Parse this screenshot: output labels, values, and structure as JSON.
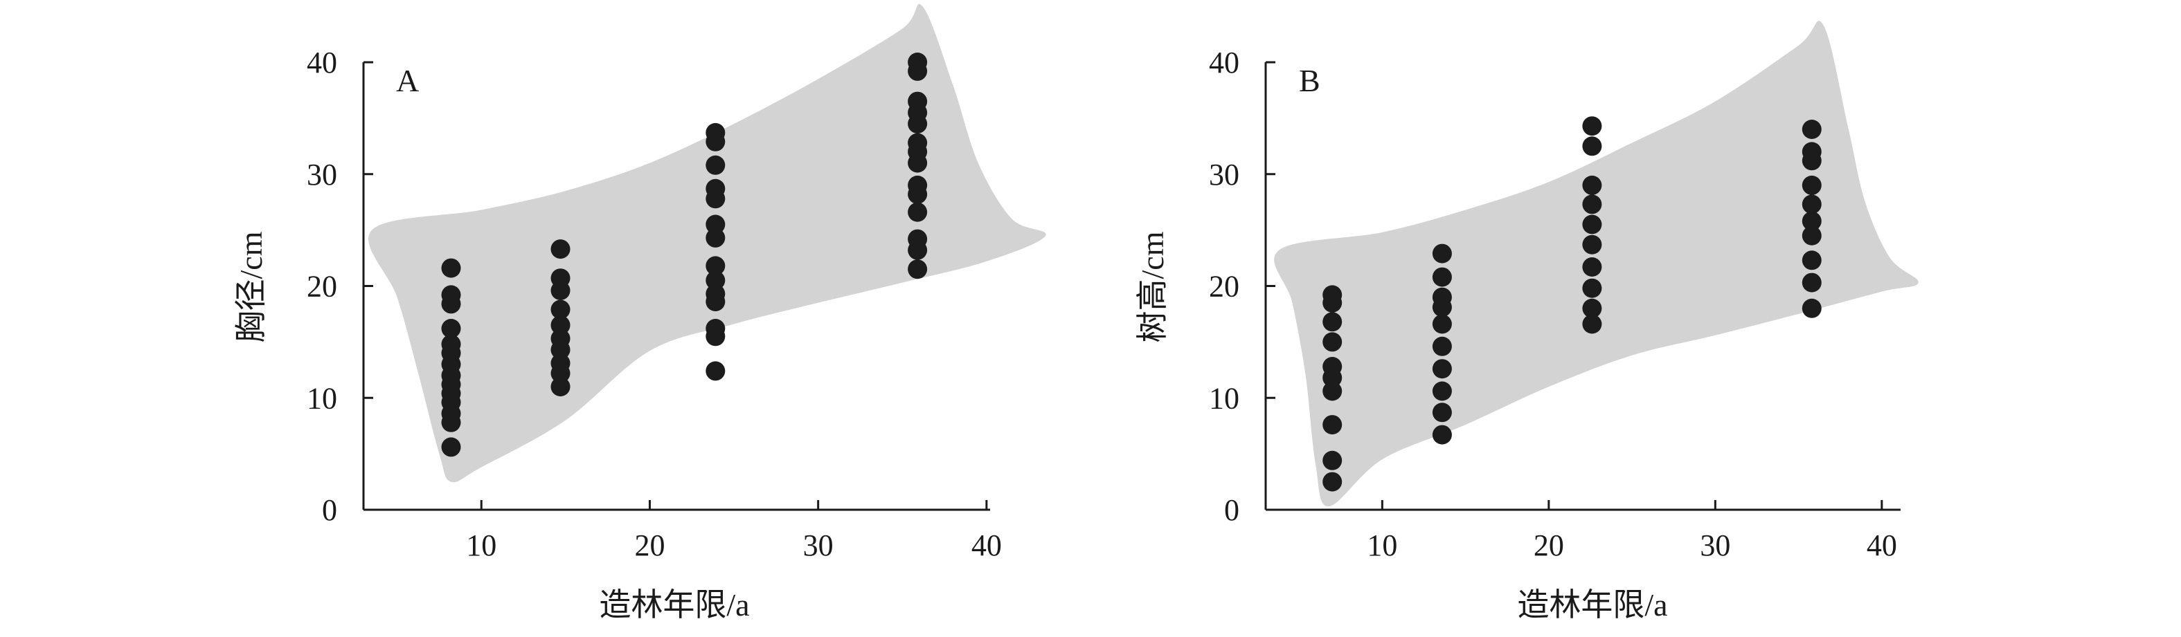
{
  "colors": {
    "band": "#d3d3d3",
    "point": "#1c1c1c",
    "axis": "#1a1a1a"
  },
  "chart_data": [
    {
      "type": "scatter",
      "panel_label": "A",
      "xlabel": "造林年限/a",
      "ylabel": "胸径/cm",
      "xlim": [
        3,
        40
      ],
      "ylim": [
        0,
        40
      ],
      "xticks": [
        10,
        20,
        30,
        40
      ],
      "yticks": [
        0,
        10,
        20,
        30,
        40
      ],
      "prediction_band": {
        "upper": [
          [
            3.5,
            25
          ],
          [
            10,
            26.8
          ],
          [
            15,
            28.5
          ],
          [
            20,
            31
          ],
          [
            25,
            34.5
          ],
          [
            30,
            38.5
          ],
          [
            35,
            43
          ],
          [
            36.2,
            45
          ]
        ],
        "lower": [
          [
            43.5,
            24.5
          ],
          [
            40,
            22.2
          ],
          [
            35,
            20.3
          ],
          [
            30,
            18.5
          ],
          [
            25,
            16.6
          ],
          [
            20,
            14.2
          ],
          [
            15,
            8
          ],
          [
            10,
            3.8
          ],
          [
            8.2,
            2.5
          ]
        ],
        "connectors": {
          "left": [
            [
              7.5,
              5
            ],
            [
              6.2,
              12.5
            ],
            [
              5,
              19
            ]
          ],
          "right": [
            [
              38,
              38
            ],
            [
              39.5,
              31
            ],
            [
              41.5,
              26
            ]
          ]
        }
      },
      "series": [
        {
          "x": 8.2,
          "values": [
            21.6,
            19.2,
            18.4,
            16.2,
            14.8,
            14,
            13,
            12,
            11.2,
            10.4,
            9.6,
            8.6,
            7.8,
            5.6
          ]
        },
        {
          "x": 14.7,
          "values": [
            23.3,
            20.7,
            19.6,
            17.9,
            16.5,
            15.3,
            14.3,
            13.1,
            12.2,
            11
          ]
        },
        {
          "x": 23.9,
          "values": [
            33.7,
            32.9,
            30.8,
            28.7,
            27.8,
            25.5,
            24.3,
            21.8,
            20.5,
            19.3,
            18.6,
            16.2,
            15.5,
            12.4
          ]
        },
        {
          "x": 35.9,
          "values": [
            40,
            39.2,
            36.5,
            35.5,
            34.5,
            32.8,
            32,
            31,
            29,
            28.2,
            26.6,
            24.2,
            23.2,
            21.5
          ]
        }
      ]
    },
    {
      "type": "scatter",
      "panel_label": "B",
      "xlabel": "造林年限/a",
      "ylabel": "树高/cm",
      "xlim": [
        3,
        40
      ],
      "ylim": [
        0,
        40
      ],
      "xticks": [
        10,
        20,
        30,
        40
      ],
      "yticks": [
        0,
        10,
        20,
        30,
        40
      ],
      "prediction_band": {
        "upper": [
          [
            3.8,
            23.2
          ],
          [
            10,
            24.8
          ],
          [
            15,
            26.8
          ],
          [
            20,
            29.3
          ],
          [
            25,
            32.8
          ],
          [
            30,
            36.5
          ],
          [
            35,
            41.5
          ],
          [
            36.5,
            43.3
          ]
        ],
        "lower": [
          [
            42.2,
            20.3
          ],
          [
            40,
            19.5
          ],
          [
            35,
            17.5
          ],
          [
            30,
            15.6
          ],
          [
            25,
            13.8
          ],
          [
            20,
            11
          ],
          [
            15,
            7.6
          ],
          [
            10,
            4.5
          ],
          [
            6.8,
            0.3
          ]
        ],
        "connectors": {
          "left": [
            [
              6,
              4
            ],
            [
              5.4,
              12
            ],
            [
              4.6,
              18.5
            ]
          ],
          "right": [
            [
              38,
              34
            ],
            [
              39,
              27.5
            ],
            [
              40.5,
              22.5
            ]
          ]
        }
      },
      "series": [
        {
          "x": 7,
          "values": [
            19.2,
            18.5,
            16.8,
            15,
            12.8,
            11.8,
            10.6,
            7.6,
            4.4,
            2.5
          ]
        },
        {
          "x": 13.6,
          "values": [
            22.9,
            20.8,
            19,
            18.1,
            16.6,
            14.6,
            12.6,
            10.6,
            8.7,
            6.7
          ]
        },
        {
          "x": 22.6,
          "values": [
            34.3,
            32.5,
            29,
            27.3,
            25.5,
            23.7,
            21.7,
            19.8,
            18,
            16.6
          ]
        },
        {
          "x": 35.8,
          "values": [
            34,
            32,
            31.2,
            29,
            27.3,
            25.8,
            24.5,
            22.3,
            20.3,
            18
          ]
        }
      ]
    }
  ]
}
